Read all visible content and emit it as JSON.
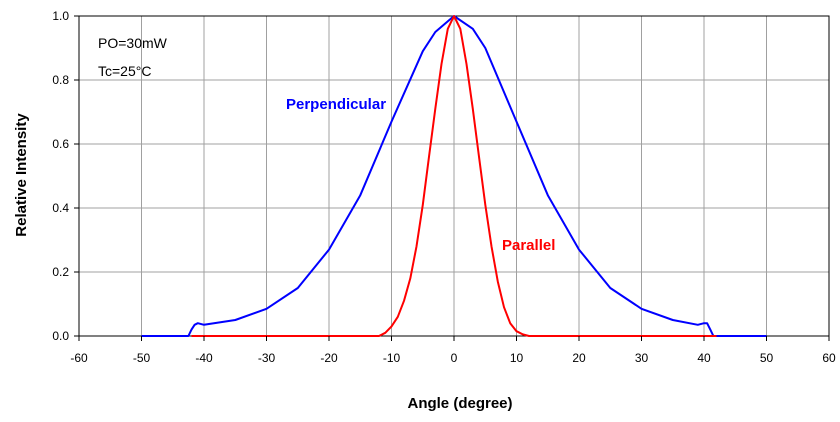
{
  "chart_data": {
    "type": "line",
    "xlabel": "Angle (degree)",
    "ylabel": "Relative Intensity",
    "xlim": [
      -60,
      60
    ],
    "ylim": [
      0,
      1.0
    ],
    "x_ticks": [
      "-60",
      "-50",
      "-40",
      "-30",
      "-20",
      "-10",
      "0",
      "10",
      "20",
      "30",
      "40",
      "50",
      "60"
    ],
    "y_ticks": [
      "0.0",
      "0.2",
      "0.4",
      "0.6",
      "0.8",
      "1.0"
    ],
    "grid": true,
    "annotations": [
      "PO=30mW",
      "Tc=25°C"
    ],
    "series": [
      {
        "name": "Perpendicular",
        "color": "#0000ff",
        "x": [
          -50,
          -42.5,
          -42,
          -41.5,
          -41,
          -40,
          -35,
          -30,
          -25,
          -20,
          -15,
          -10,
          -5,
          -3,
          0,
          3,
          5,
          10,
          15,
          20,
          25,
          30,
          35,
          39,
          40,
          40.5,
          41,
          41.5,
          50
        ],
        "y": [
          0.0,
          0.0,
          0.02,
          0.035,
          0.04,
          0.035,
          0.05,
          0.085,
          0.15,
          0.27,
          0.44,
          0.67,
          0.89,
          0.95,
          1.0,
          0.96,
          0.9,
          0.67,
          0.44,
          0.27,
          0.15,
          0.085,
          0.05,
          0.035,
          0.04,
          0.04,
          0.02,
          0.0,
          0.0
        ]
      },
      {
        "name": "Parallel",
        "color": "#ff0000",
        "x": [
          -42,
          -12,
          -11,
          -10,
          -9,
          -8,
          -7,
          -6,
          -5,
          -4,
          -3,
          -2,
          -1,
          0,
          1,
          2,
          3,
          4,
          5,
          6,
          7,
          8,
          9,
          10,
          11,
          12,
          42
        ],
        "y": [
          0.0,
          0.0,
          0.01,
          0.03,
          0.06,
          0.11,
          0.18,
          0.28,
          0.41,
          0.56,
          0.71,
          0.85,
          0.96,
          1.0,
          0.96,
          0.85,
          0.71,
          0.56,
          0.41,
          0.28,
          0.17,
          0.09,
          0.04,
          0.015,
          0.005,
          0.0,
          0.0
        ]
      }
    ]
  }
}
